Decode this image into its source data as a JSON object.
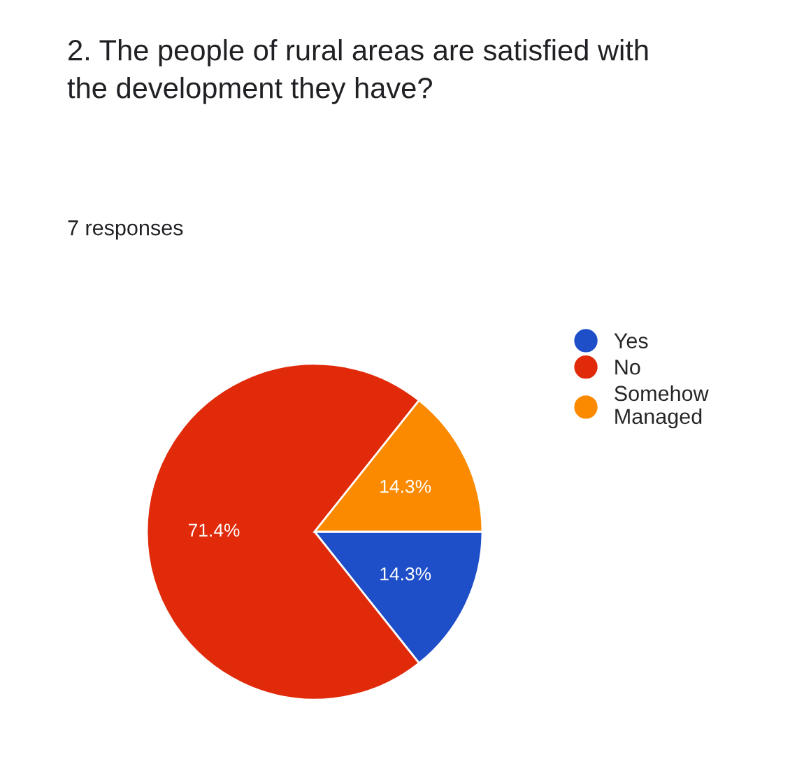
{
  "chart_data": {
    "type": "pie",
    "title": "2. The people of rural areas are satisfied with the development they have?",
    "subtitle": "7 responses",
    "categories": [
      "Yes",
      "No",
      "Somehow Managed"
    ],
    "values": [
      14.3,
      71.4,
      14.3
    ],
    "colors": [
      "#1f4fc8",
      "#e02a0a",
      "#fb8a00"
    ],
    "value_labels": [
      "14.3%",
      "71.4%",
      "14.3%"
    ],
    "legend": "right"
  }
}
